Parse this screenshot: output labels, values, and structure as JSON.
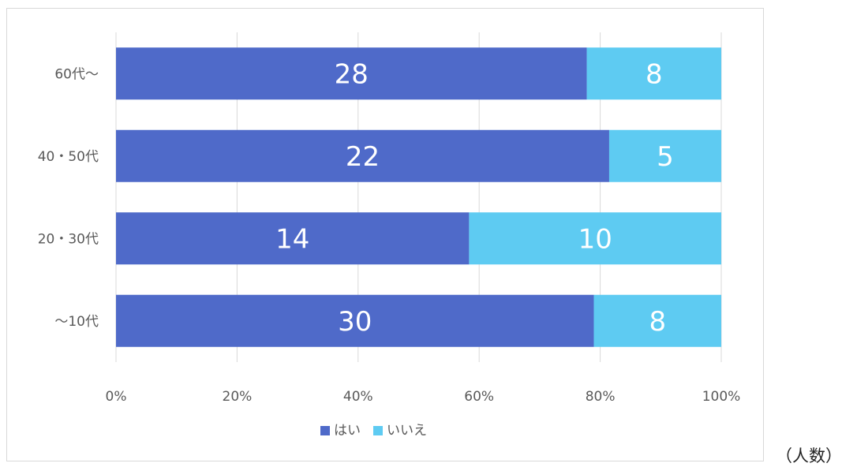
{
  "chart_data": {
    "type": "bar",
    "orientation": "horizontal",
    "stacked": "percent",
    "categories": [
      "60代～",
      "40・50代",
      "20・30代",
      "～10代"
    ],
    "series": [
      {
        "name": "はい",
        "values": [
          28,
          22,
          14,
          30
        ],
        "color": "#4f6ac9"
      },
      {
        "name": "いいえ",
        "values": [
          8,
          5,
          10,
          8
        ],
        "color": "#5ecbf2"
      }
    ],
    "x_ticks": [
      "0%",
      "20%",
      "40%",
      "60%",
      "80%",
      "100%"
    ],
    "xlim": [
      0,
      100
    ],
    "grid": true,
    "legend_position": "bottom"
  },
  "unit_note": "（人数）"
}
